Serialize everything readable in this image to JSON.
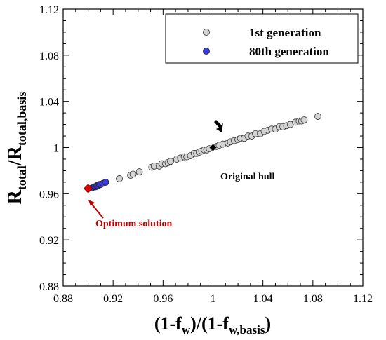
{
  "chart_data": {
    "type": "scatter",
    "xlim": [
      0.88,
      1.12
    ],
    "ylim": [
      0.88,
      1.12
    ],
    "xticks": [
      "0.88",
      "0.92",
      "0.96",
      "1",
      "1.04",
      "1.08",
      "1.12"
    ],
    "yticks": [
      "0.88",
      "0.92",
      "0.96",
      "1",
      "1.04",
      "1.08",
      "1.12"
    ],
    "xlabel": {
      "main": "(1-f",
      "sub1": "w",
      "mid": ")/(1-f",
      "sub2": "w,basis",
      "end": ")"
    },
    "ylabel": {
      "r1": "R",
      "sub1": "total",
      "slash": "/R",
      "sub2": "total,basis"
    },
    "grid": false,
    "legend_position": "top-right",
    "series": [
      {
        "name": "1st generation",
        "color": "#d3d3d3",
        "points": [
          [
            0.925,
            0.973
          ],
          [
            0.934,
            0.976
          ],
          [
            0.936,
            0.977
          ],
          [
            0.941,
            0.979
          ],
          [
            0.951,
            0.983
          ],
          [
            0.953,
            0.984
          ],
          [
            0.957,
            0.984
          ],
          [
            0.959,
            0.986
          ],
          [
            0.962,
            0.986
          ],
          [
            0.964,
            0.987
          ],
          [
            0.966,
            0.988
          ],
          [
            0.971,
            0.99
          ],
          [
            0.974,
            0.991
          ],
          [
            0.977,
            0.992
          ],
          [
            0.979,
            0.992
          ],
          [
            0.982,
            0.993
          ],
          [
            0.985,
            0.995
          ],
          [
            0.987,
            0.995
          ],
          [
            0.989,
            0.996
          ],
          [
            0.991,
            0.997
          ],
          [
            0.993,
            0.998
          ],
          [
            0.995,
            0.998
          ],
          [
            0.997,
            0.999
          ],
          [
            1.003,
            1.001
          ],
          [
            1.005,
            1.002
          ],
          [
            1.008,
            1.003
          ],
          [
            1.012,
            1.004
          ],
          [
            1.014,
            1.005
          ],
          [
            1.017,
            1.006
          ],
          [
            1.02,
            1.007
          ],
          [
            1.022,
            1.008
          ],
          [
            1.025,
            1.008
          ],
          [
            1.028,
            1.01
          ],
          [
            1.031,
            1.01
          ],
          [
            1.034,
            1.012
          ],
          [
            1.038,
            1.012
          ],
          [
            1.041,
            1.014
          ],
          [
            1.044,
            1.015
          ],
          [
            1.047,
            1.016
          ],
          [
            1.05,
            1.016
          ],
          [
            1.053,
            1.018
          ],
          [
            1.056,
            1.018
          ],
          [
            1.059,
            1.019
          ],
          [
            1.062,
            1.02
          ],
          [
            1.066,
            1.022
          ],
          [
            1.069,
            1.023
          ],
          [
            1.071,
            1.023
          ],
          [
            1.073,
            1.024
          ],
          [
            1.084,
            1.027
          ]
        ]
      },
      {
        "name": "80th generation",
        "color": "#3a3ae0",
        "points": [
          [
            0.903,
            0.965
          ],
          [
            0.905,
            0.966
          ],
          [
            0.906,
            0.966
          ],
          [
            0.907,
            0.967
          ],
          [
            0.908,
            0.967
          ],
          [
            0.909,
            0.968
          ],
          [
            0.91,
            0.968
          ],
          [
            0.912,
            0.969
          ],
          [
            0.914,
            0.97
          ]
        ]
      }
    ],
    "annotations": [
      {
        "label": "Original hull",
        "point": [
          1.0,
          1.0
        ],
        "color": "#000000"
      },
      {
        "label": "Optimum solution",
        "point": [
          0.9,
          0.9645
        ],
        "color": "#c00000"
      }
    ]
  }
}
